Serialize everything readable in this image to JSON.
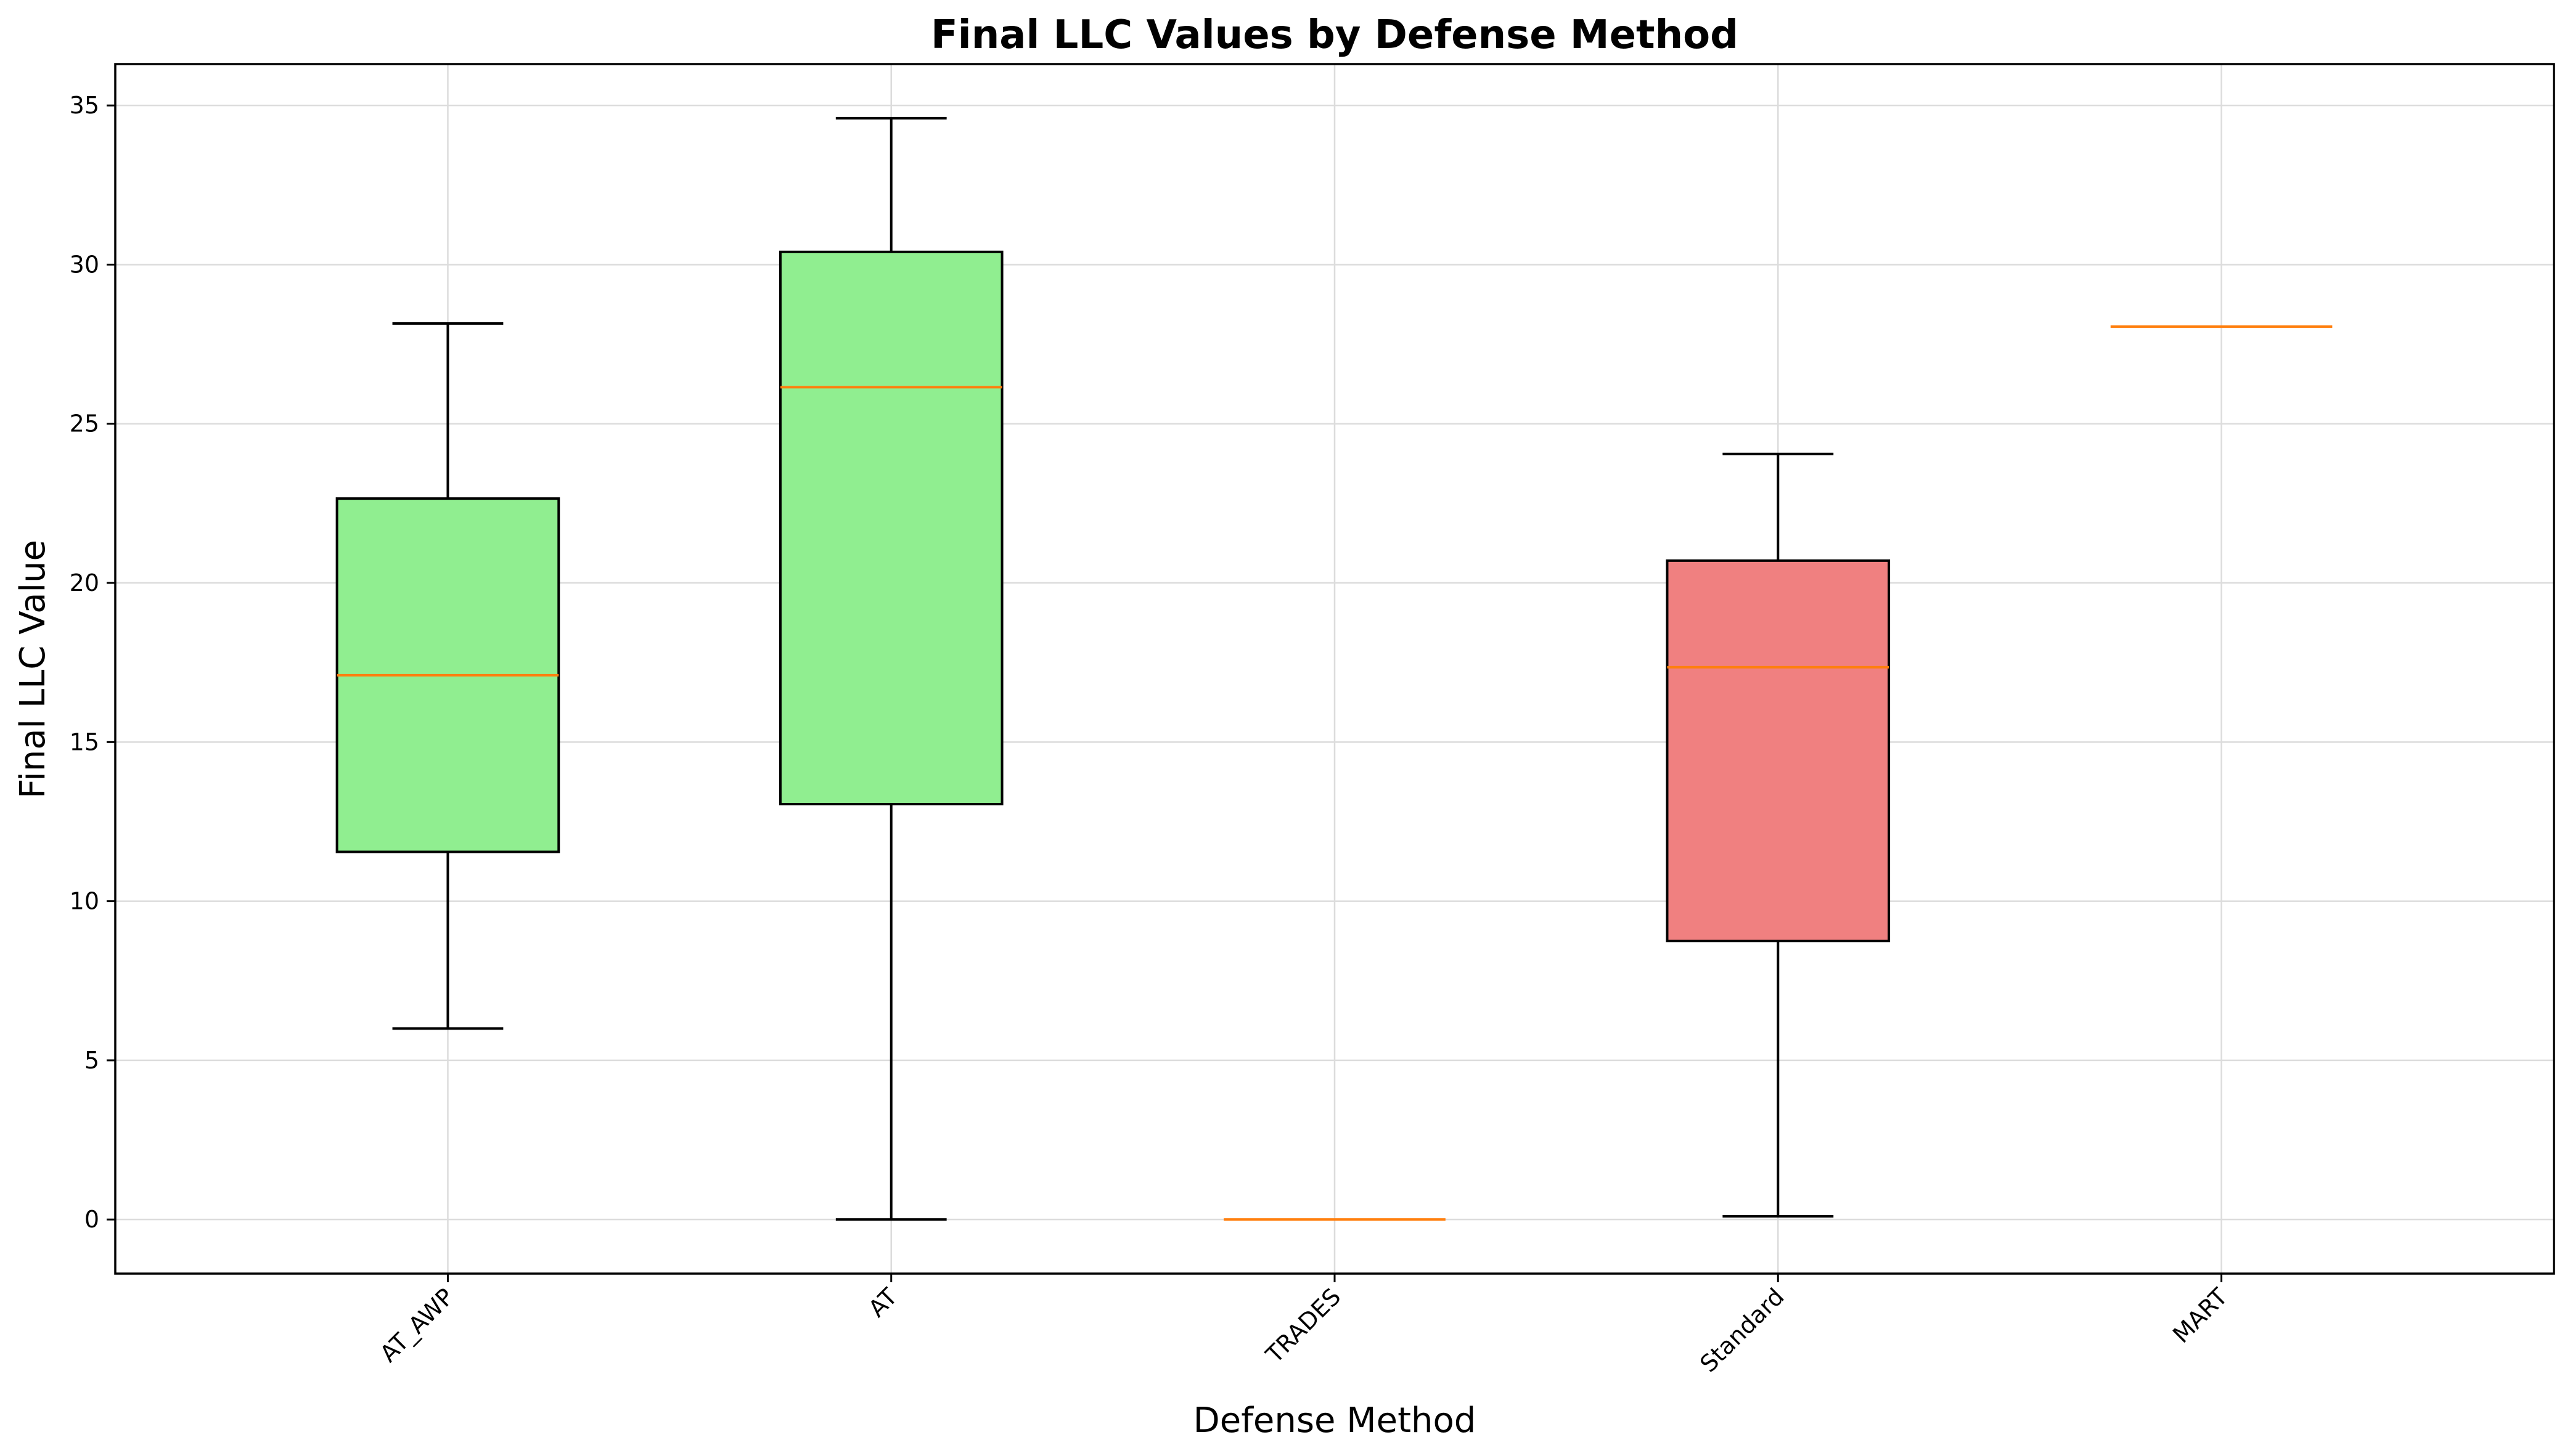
{
  "chart_data": {
    "type": "box",
    "title": "Final LLC Values by Defense Method",
    "xlabel": "Defense Method",
    "ylabel": "Final LLC Value",
    "categories": [
      "AT_AWP",
      "AT",
      "TRADES",
      "Standard",
      "MART"
    ],
    "boxes": [
      {
        "category": "AT_AWP",
        "whisker_low": 6.0,
        "q1": 11.55,
        "median": 17.1,
        "q3": 22.65,
        "whisker_high": 28.15,
        "color": "#90ee90"
      },
      {
        "category": "AT",
        "whisker_low": 0.0,
        "q1": 13.05,
        "median": 26.15,
        "q3": 30.4,
        "whisker_high": 34.6,
        "color": "#90ee90"
      },
      {
        "category": "TRADES",
        "whisker_low": 0.0,
        "q1": 0.0,
        "median": 0.0,
        "q3": 0.0,
        "whisker_high": 0.0,
        "color": "#90ee90"
      },
      {
        "category": "Standard",
        "whisker_low": 0.1,
        "q1": 8.75,
        "median": 17.35,
        "q3": 20.7,
        "whisker_high": 24.05,
        "color": "#f08080"
      },
      {
        "category": "MART",
        "whisker_low": 28.05,
        "q1": 28.05,
        "median": 28.05,
        "q3": 28.05,
        "whisker_high": 28.05,
        "color": "#90ee90"
      }
    ],
    "ylim": [
      -1.7,
      36.3
    ],
    "yticks": [
      0,
      5,
      10,
      15,
      20,
      25,
      30,
      35
    ],
    "ytick_labels": [
      "0",
      "5",
      "10",
      "15",
      "20",
      "25",
      "30",
      "35"
    ],
    "xtick_rotation_deg": 45,
    "median_color": "#ff7f0e",
    "grid": true,
    "legend": "none"
  }
}
